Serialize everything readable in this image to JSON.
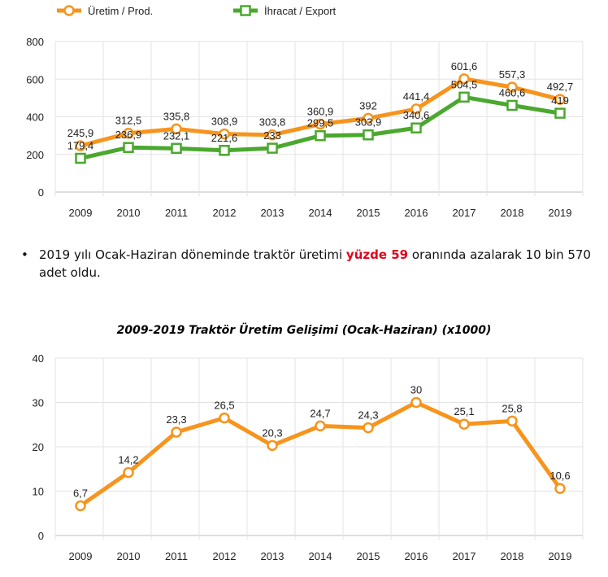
{
  "chart_data": [
    {
      "type": "line",
      "categories": [
        "2009",
        "2010",
        "2011",
        "2012",
        "2013",
        "2014",
        "2015",
        "2016",
        "2017",
        "2018",
        "2019"
      ],
      "ylim": [
        0,
        800
      ],
      "yticks": [
        "0",
        "200",
        "400",
        "600",
        "800"
      ],
      "grid": true,
      "legend": "top-left",
      "series": [
        {
          "name": "Üretim / Prod.",
          "color": "#f7941d",
          "marker": "circle",
          "values": [
            245.9,
            312.5,
            335.8,
            308.9,
            303.8,
            360.9,
            392,
            441.4,
            601.6,
            557.3,
            492.7
          ],
          "labels": [
            "245,9",
            "312,5",
            "335,8",
            "308,9",
            "303,8",
            "360,9",
            "392",
            "441,4",
            "601,6",
            "557,3",
            "492,7"
          ]
        },
        {
          "name": "İhracat / Export",
          "color": "#4aa82e",
          "marker": "square",
          "values": [
            179.4,
            236.9,
            232.1,
            221.6,
            233,
            299.5,
            303.9,
            340.6,
            504.5,
            460.6,
            419
          ],
          "labels": [
            "179,4",
            "236,9",
            "232,1",
            "221,6",
            "233",
            "299,5",
            "303,9",
            "340,6",
            "504,5",
            "460,6",
            "419"
          ]
        }
      ]
    },
    {
      "type": "line",
      "title": "2009-2019 Traktör Üretim Gelişimi (Ocak-Haziran) (x1000)",
      "categories": [
        "2009",
        "2010",
        "2011",
        "2012",
        "2013",
        "2014",
        "2015",
        "2016",
        "2017",
        "2018",
        "2019"
      ],
      "ylim": [
        0,
        40
      ],
      "yticks": [
        "0",
        "10",
        "20",
        "30",
        "40"
      ],
      "grid": true,
      "series": [
        {
          "color": "#f7941d",
          "marker": "circle",
          "values": [
            6.7,
            14.2,
            23.3,
            26.5,
            20.3,
            24.7,
            24.3,
            30,
            25.1,
            25.8,
            10.6
          ],
          "labels": [
            "6,7",
            "14,2",
            "23,3",
            "26,5",
            "20,3",
            "24,7",
            "24,3",
            "30",
            "25,1",
            "25,8",
            "10,6"
          ]
        }
      ]
    }
  ],
  "text": {
    "bullet": "•",
    "before": "2019 yılı Ocak-Haziran döneminde traktör üretimi ",
    "highlight": "yüzde 59",
    "after": " oranında azalarak 10 bin 570 adet oldu."
  }
}
